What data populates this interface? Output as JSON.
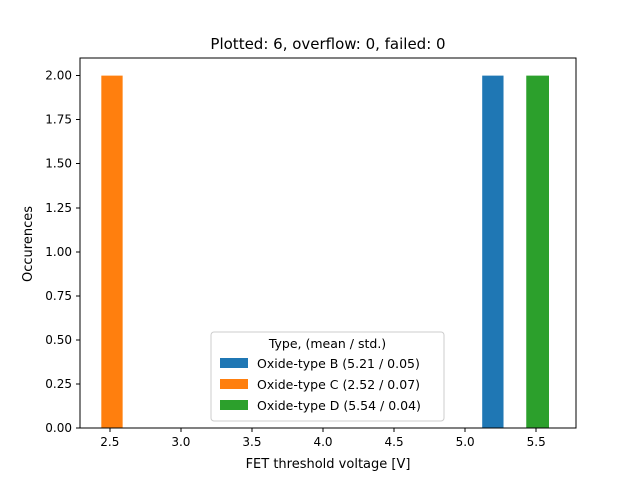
{
  "chart_data": {
    "type": "bar",
    "title": "Plotted: 6, overflow: 0, failed: 0",
    "xlabel": "FET threshold voltage [V]",
    "ylabel": "Occurences",
    "xlim": [
      2.29,
      5.78
    ],
    "ylim": [
      0,
      2.1
    ],
    "xticks": [
      2.5,
      3.0,
      3.5,
      4.0,
      4.5,
      5.0,
      5.5
    ],
    "xtick_labels": [
      "2.5",
      "3.0",
      "3.5",
      "4.0",
      "4.5",
      "5.0",
      "5.5"
    ],
    "yticks": [
      0.0,
      0.25,
      0.5,
      0.75,
      1.0,
      1.25,
      1.5,
      1.75,
      2.0
    ],
    "ytick_labels": [
      "0.00",
      "0.25",
      "0.50",
      "0.75",
      "1.00",
      "1.25",
      "1.50",
      "1.75",
      "2.00"
    ],
    "grid": false,
    "legend": {
      "title": "Type, (mean / std.)",
      "placement": "lower-center"
    },
    "series": [
      {
        "name": "Oxide-type B (5.21 / 0.05)",
        "color": "#1f77b4",
        "bins": [
          {
            "x0": 5.12,
            "x1": 5.27,
            "value": 2
          }
        ]
      },
      {
        "name": "Oxide-type C (2.52 / 0.07)",
        "color": "#ff7f0e",
        "bins": [
          {
            "x0": 2.44,
            "x1": 2.59,
            "value": 2
          }
        ]
      },
      {
        "name": "Oxide-type D (5.54 / 0.04)",
        "color": "#2ca02c",
        "bins": [
          {
            "x0": 5.43,
            "x1": 5.59,
            "value": 2
          }
        ]
      }
    ]
  }
}
